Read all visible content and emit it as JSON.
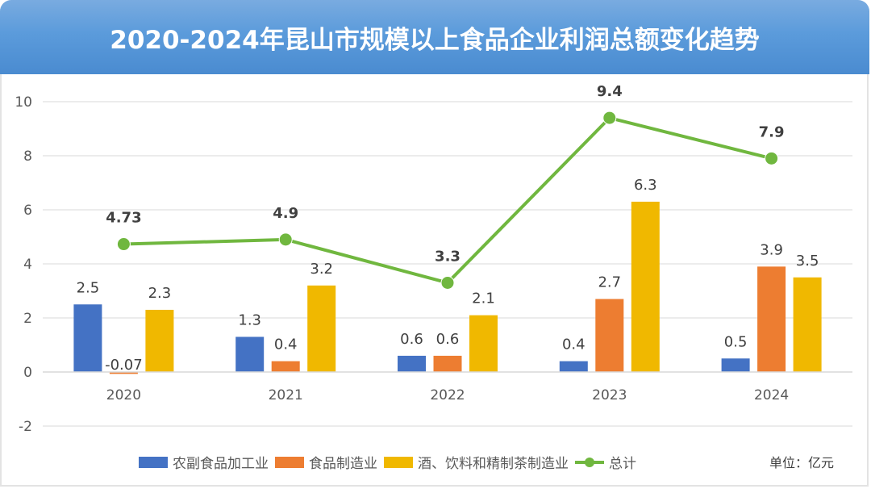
{
  "title": "2020-2024年昆山市规模以上食品企业利润总额变化趋势",
  "unit_label": "单位：亿元",
  "colors": {
    "series_agri": "#4472c4",
    "series_food": "#ed7d31",
    "series_drink": "#f0b800",
    "series_total": "#70b73f",
    "header": "#5b9bdb"
  },
  "chart_data": {
    "type": "bar",
    "title": "2020-2024年昆山市规模以上食品企业利润总额变化趋势",
    "xlabel": "",
    "ylabel": "",
    "unit": "亿元",
    "categories": [
      "2020",
      "2021",
      "2022",
      "2023",
      "2024"
    ],
    "ylim": [
      -2,
      10
    ],
    "yticks": [
      -2,
      0,
      2,
      4,
      6,
      8,
      10
    ],
    "grid": true,
    "legend_position": "bottom",
    "series": [
      {
        "name": "农副食品加工业",
        "type": "bar",
        "color": "#4472c4",
        "values": [
          2.5,
          1.3,
          0.6,
          0.4,
          0.5
        ],
        "labels": [
          "2.5",
          "1.3",
          "0.6",
          "0.4",
          "0.5"
        ]
      },
      {
        "name": "食品制造业",
        "type": "bar",
        "color": "#ed7d31",
        "values": [
          -0.07,
          0.4,
          0.6,
          2.7,
          3.9
        ],
        "labels": [
          "-0.07",
          "0.4",
          "0.6",
          "2.7",
          "3.9"
        ]
      },
      {
        "name": "酒、饮料和精制茶制造业",
        "type": "bar",
        "color": "#f0b800",
        "values": [
          2.3,
          3.2,
          2.1,
          6.3,
          3.5
        ],
        "labels": [
          "2.3",
          "3.2",
          "2.1",
          "6.3",
          "3.5"
        ]
      },
      {
        "name": "总计",
        "type": "line",
        "color": "#70b73f",
        "values": [
          4.73,
          4.9,
          3.3,
          9.4,
          7.9
        ],
        "labels": [
          "4.73",
          "4.9",
          "3.3",
          "9.4",
          "7.9"
        ]
      }
    ]
  }
}
